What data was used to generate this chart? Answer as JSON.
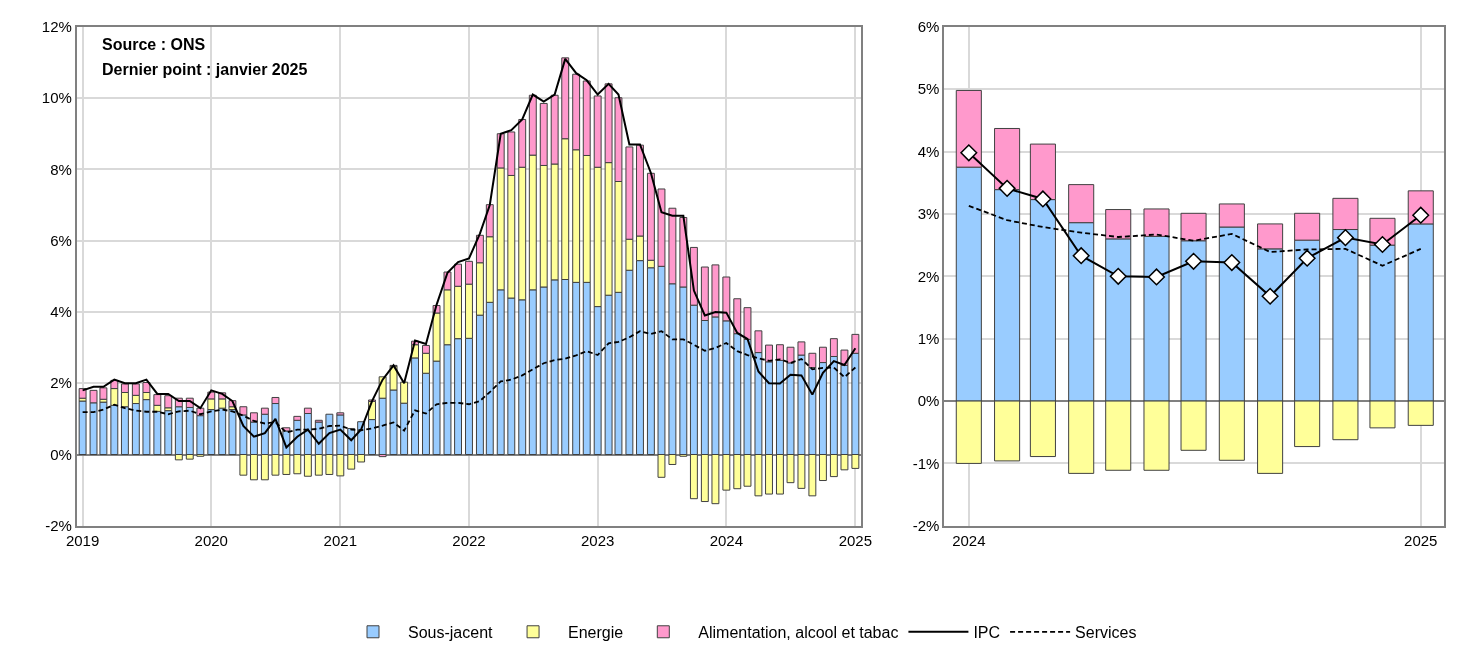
{
  "chart_data": [
    {
      "type": "bar",
      "stacked": true,
      "annotations": [
        "Source : ONS",
        "Dernier point : janvier 2025"
      ],
      "x": [
        "2019-01",
        "2019-02",
        "2019-03",
        "2019-04",
        "2019-05",
        "2019-06",
        "2019-07",
        "2019-08",
        "2019-09",
        "2019-10",
        "2019-11",
        "2019-12",
        "2020-01",
        "2020-02",
        "2020-03",
        "2020-04",
        "2020-05",
        "2020-06",
        "2020-07",
        "2020-08",
        "2020-09",
        "2020-10",
        "2020-11",
        "2020-12",
        "2021-01",
        "2021-02",
        "2021-03",
        "2021-04",
        "2021-05",
        "2021-06",
        "2021-07",
        "2021-08",
        "2021-09",
        "2021-10",
        "2021-11",
        "2021-12",
        "2022-01",
        "2022-02",
        "2022-03",
        "2022-04",
        "2022-05",
        "2022-06",
        "2022-07",
        "2022-08",
        "2022-09",
        "2022-10",
        "2022-11",
        "2022-12",
        "2023-01",
        "2023-02",
        "2023-03",
        "2023-04",
        "2023-05",
        "2023-06",
        "2023-07",
        "2023-08",
        "2023-09",
        "2023-10",
        "2023-11",
        "2023-12",
        "2024-01",
        "2024-02",
        "2024-03",
        "2024-04",
        "2024-05",
        "2024-06",
        "2024-07",
        "2024-08",
        "2024-09",
        "2024-10",
        "2024-11",
        "2024-12",
        "2025-01"
      ],
      "series": [
        {
          "name": "Sous-jacent",
          "color": "#99ccff",
          "values": [
            1.5,
            1.45,
            1.47,
            1.38,
            1.34,
            1.43,
            1.54,
            1.21,
            1.23,
            1.34,
            1.32,
            1.09,
            1.26,
            1.3,
            1.26,
            1.11,
            0.91,
            1.13,
            1.43,
            0.66,
            0.96,
            1.15,
            0.91,
            1.13,
            1.11,
            0.73,
            0.92,
            0.98,
            1.58,
            1.81,
            1.44,
            2.71,
            2.28,
            2.62,
            3.08,
            3.25,
            3.26,
            3.91,
            4.27,
            4.62,
            4.39,
            4.34,
            4.62,
            4.7,
            4.9,
            4.91,
            4.83,
            4.83,
            4.15,
            4.47,
            4.55,
            5.17,
            5.44,
            5.24,
            5.28,
            4.79,
            4.7,
            4.19,
            3.76,
            3.86,
            3.75,
            3.39,
            3.23,
            2.86,
            2.6,
            2.64,
            2.57,
            2.79,
            2.44,
            2.58,
            2.75,
            2.5,
            2.84
          ]
        },
        {
          "name": "Energie",
          "color": "#ffff99",
          "values": [
            0.08,
            null,
            0.08,
            0.47,
            0.4,
            0.23,
            0.2,
            0.17,
            0.08,
            -0.15,
            -0.13,
            -0.05,
            0.3,
            0.26,
            0.08,
            -0.58,
            -0.71,
            -0.71,
            -0.58,
            -0.56,
            -0.54,
            -0.61,
            -0.58,
            -0.56,
            -0.6,
            -0.41,
            -0.21,
            0.51,
            0.6,
            0.67,
            0.59,
            0.37,
            0.56,
            1.35,
            1.54,
            1.47,
            1.52,
            1.47,
            1.84,
            3.42,
            3.44,
            3.72,
            3.78,
            3.41,
            3.25,
            3.95,
            3.72,
            3.56,
            3.91,
            3.72,
            3.11,
            0.87,
            0.69,
            0.21,
            -0.64,
            -0.28,
            -0.05,
            -1.24,
            -1.32,
            -1.38,
            -1.0,
            -0.96,
            -0.89,
            -1.16,
            -1.11,
            -1.11,
            -0.79,
            -0.95,
            -1.16,
            -0.73,
            -0.62,
            -0.43,
            -0.39
          ]
        },
        {
          "name": "Alimentation, alcool et tabac",
          "color": "#ff99cc",
          "values": [
            0.27,
            0.35,
            0.32,
            0.23,
            0.24,
            0.32,
            0.28,
            0.3,
            0.34,
            0.24,
            0.26,
            0.21,
            0.19,
            0.17,
            0.17,
            0.23,
            0.26,
            0.17,
            0.17,
            0.09,
            0.11,
            0.15,
            0.05,
            null,
            0.06,
            null,
            null,
            0.04,
            -0.06,
            0.02,
            null,
            0.1,
            0.22,
            0.21,
            0.5,
            0.62,
            0.64,
            0.77,
            0.9,
            0.96,
            1.22,
            1.34,
            1.68,
            1.74,
            1.93,
            2.27,
            2.12,
            2.09,
            2.0,
            2.21,
            2.35,
            2.59,
            2.55,
            2.44,
            2.17,
            2.12,
            1.95,
            1.62,
            1.5,
            1.46,
            1.23,
            0.98,
            0.89,
            0.61,
            0.47,
            0.44,
            0.44,
            0.37,
            0.4,
            0.43,
            0.5,
            0.43,
            0.53
          ]
        },
        {
          "name": "IPC",
          "type": "line",
          "color": "#000000",
          "line_style": "solid",
          "values": [
            1.8,
            1.9,
            1.9,
            2.1,
            2.0,
            2.0,
            2.1,
            1.7,
            1.7,
            1.5,
            1.5,
            1.3,
            1.8,
            1.7,
            1.5,
            0.8,
            0.5,
            0.6,
            1.0,
            0.2,
            0.5,
            0.7,
            0.3,
            0.6,
            0.7,
            0.4,
            0.7,
            1.5,
            2.1,
            2.5,
            2.0,
            3.2,
            3.1,
            4.2,
            5.1,
            5.4,
            5.5,
            6.2,
            7.0,
            9.0,
            9.1,
            9.4,
            10.1,
            9.9,
            10.1,
            11.1,
            10.7,
            10.5,
            10.1,
            10.4,
            10.1,
            8.7,
            8.7,
            7.9,
            6.8,
            6.7,
            6.7,
            4.6,
            3.9,
            4.0,
            3.98,
            3.41,
            3.24,
            2.33,
            2.0,
            1.99,
            2.24,
            2.22,
            1.68,
            2.29,
            2.62,
            2.51,
            2.98
          ]
        },
        {
          "name": "Services",
          "type": "line",
          "color": "#000000",
          "line_style": "dashed",
          "values": [
            1.19,
            1.19,
            1.26,
            1.4,
            1.3,
            1.23,
            1.2,
            1.2,
            1.13,
            1.21,
            1.23,
            1.13,
            1.21,
            1.26,
            1.21,
            1.09,
            0.94,
            0.87,
            0.91,
            0.62,
            0.7,
            0.7,
            0.72,
            0.8,
            0.81,
            0.7,
            0.68,
            0.73,
            0.81,
            0.9,
            0.67,
            1.24,
            1.15,
            1.41,
            1.45,
            1.45,
            1.41,
            1.5,
            1.75,
            2.05,
            2.1,
            2.22,
            2.39,
            2.56,
            2.65,
            2.69,
            2.78,
            2.9,
            2.79,
            3.12,
            3.16,
            3.29,
            3.46,
            3.38,
            3.46,
            3.23,
            3.23,
            3.08,
            2.91,
            2.99,
            3.13,
            2.9,
            2.79,
            2.7,
            2.63,
            2.67,
            2.57,
            2.68,
            2.39,
            2.43,
            2.44,
            2.17,
            2.44
          ]
        }
      ],
      "xlim": [
        "2018-12-15",
        "2025-01-17"
      ],
      "xticks": [
        "2019",
        "2020",
        "2021",
        "2022",
        "2023",
        "2024",
        "2025"
      ],
      "ylim": [
        -2,
        12
      ],
      "yticks": [
        {
          "value": -2,
          "label": "-2%"
        },
        {
          "value": 0,
          "label": "0%"
        },
        {
          "value": 2,
          "label": "2%"
        },
        {
          "value": 4,
          "label": "4%"
        },
        {
          "value": 6,
          "label": "6%"
        },
        {
          "value": 8,
          "label": "8%"
        },
        {
          "value": 10,
          "label": "10%"
        },
        {
          "value": 12,
          "label": "12%"
        }
      ],
      "grid": true,
      "legend": "bottom",
      "marker": "none"
    },
    {
      "type": "bar",
      "stacked": true,
      "x": [
        "2024-01",
        "2024-02",
        "2024-03",
        "2024-04",
        "2024-05",
        "2024-06",
        "2024-07",
        "2024-08",
        "2024-09",
        "2024-10",
        "2024-11",
        "2024-12",
        "2025-01"
      ],
      "series": [
        {
          "color": "#99ccff",
          "values": [
            3.75,
            3.39,
            3.23,
            2.86,
            2.6,
            2.64,
            2.57,
            2.79,
            2.44,
            2.58,
            2.75,
            2.5,
            2.84
          ]
        },
        {
          "color": "#ffff99",
          "values": [
            -1.0,
            -0.96,
            -0.89,
            -1.16,
            -1.11,
            -1.11,
            -0.79,
            -0.95,
            -1.16,
            -0.73,
            -0.62,
            -0.43,
            -0.39
          ]
        },
        {
          "color": "#ff99cc",
          "values": [
            1.23,
            0.98,
            0.89,
            0.61,
            0.47,
            0.44,
            0.44,
            0.37,
            0.4,
            0.43,
            0.5,
            0.43,
            0.53
          ]
        },
        {
          "type": "line",
          "color": "#000000",
          "line_style": "solid",
          "marker": "diamond",
          "values": [
            3.98,
            3.41,
            3.24,
            2.33,
            2.0,
            1.99,
            2.24,
            2.22,
            1.68,
            2.29,
            2.62,
            2.51,
            2.98
          ]
        },
        {
          "type": "line",
          "color": "#000000",
          "line_style": "dashed",
          "values": [
            3.13,
            2.9,
            2.79,
            2.7,
            2.63,
            2.67,
            2.57,
            2.68,
            2.39,
            2.43,
            2.44,
            2.17,
            2.44
          ]
        }
      ],
      "xlim": [
        "2023-12-12",
        "2025-01-20"
      ],
      "xticks": [
        "2024",
        "2025"
      ],
      "ylim": [
        -2,
        6
      ],
      "yticks": [
        {
          "value": -2,
          "label": "-2%"
        },
        {
          "value": -1,
          "label": "-1%"
        },
        {
          "value": 0,
          "label": "0%"
        },
        {
          "value": 1,
          "label": "1%"
        },
        {
          "value": 2,
          "label": "2%"
        },
        {
          "value": 3,
          "label": "3%"
        },
        {
          "value": 4,
          "label": "4%"
        },
        {
          "value": 5,
          "label": "5%"
        },
        {
          "value": 6,
          "label": "6%"
        }
      ],
      "grid": true,
      "legend": false
    }
  ]
}
